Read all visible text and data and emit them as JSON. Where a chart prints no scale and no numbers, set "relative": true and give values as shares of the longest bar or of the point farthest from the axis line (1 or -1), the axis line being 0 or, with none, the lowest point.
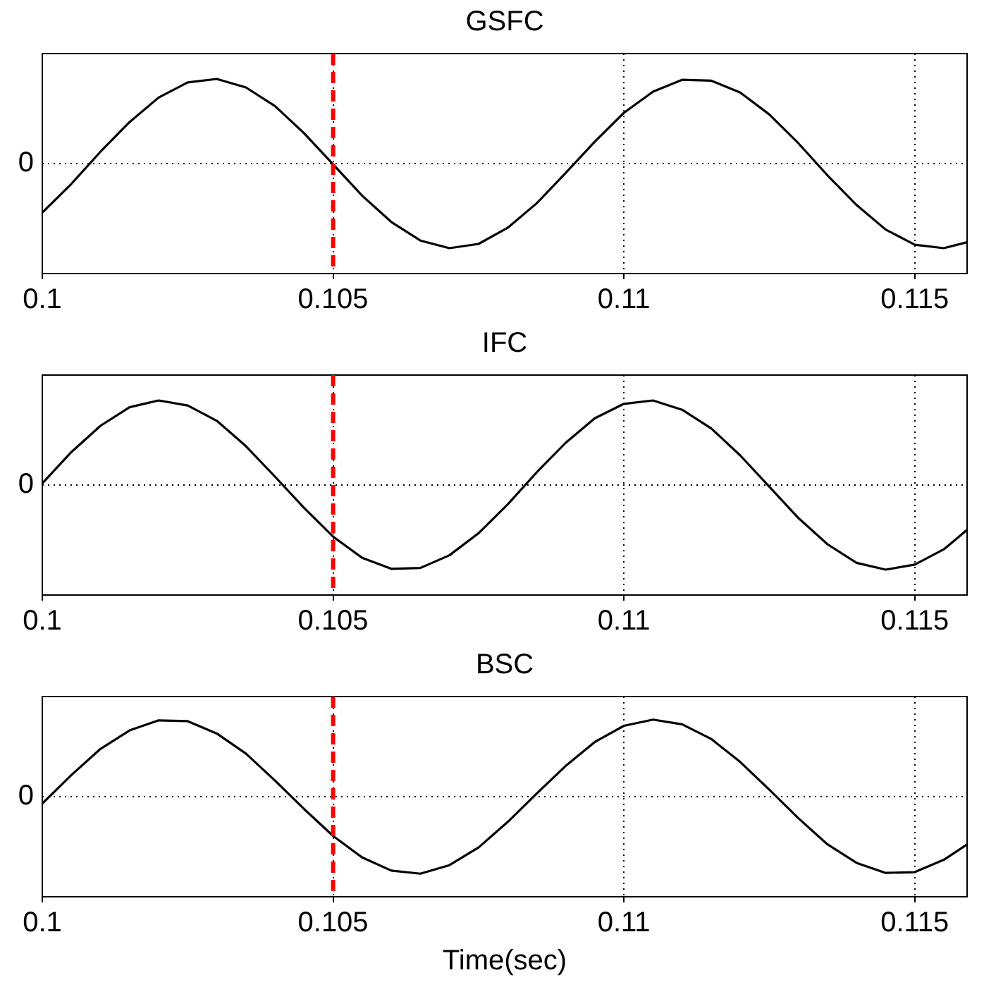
{
  "chart_data": [
    {
      "type": "line",
      "title": "GSFC",
      "relative": true,
      "x": [
        0.1,
        0.1005,
        0.101,
        0.1015,
        0.102,
        0.1025,
        0.103,
        0.1035,
        0.104,
        0.1045,
        0.105,
        0.1055,
        0.106,
        0.1065,
        0.107,
        0.1075,
        0.108,
        0.1085,
        0.109,
        0.1095,
        0.11,
        0.1105,
        0.111,
        0.1115,
        0.112,
        0.1125,
        0.113,
        0.1135,
        0.114,
        0.1145,
        0.115,
        0.1155,
        0.1159
      ],
      "series": [
        {
          "color": "#000000",
          "values": [
            -0.58,
            -0.24,
            0.14,
            0.49,
            0.78,
            0.96,
            1.0,
            0.9,
            0.68,
            0.36,
            -0.01,
            -0.38,
            -0.69,
            -0.91,
            -1.0,
            -0.95,
            -0.76,
            -0.47,
            -0.11,
            0.26,
            0.6,
            0.85,
            0.99,
            0.98,
            0.84,
            0.58,
            0.24,
            -0.14,
            -0.49,
            -0.78,
            -0.96,
            -1.0,
            -0.93
          ]
        }
      ],
      "xlim": [
        0.1,
        0.1159
      ],
      "xticks": [
        0.1,
        0.105,
        0.11,
        0.115
      ],
      "grid": "x",
      "marker": "none",
      "line_style": "solid",
      "legend": false,
      "ref_lines": [
        {
          "axis": "y",
          "value": 0,
          "label": "0",
          "line_style": "dotted",
          "color": "#000000"
        },
        {
          "axis": "x",
          "value": 0.105,
          "label": null,
          "line_style": "dashed",
          "color": "#ff0000"
        }
      ]
    },
    {
      "type": "line",
      "title": "IFC",
      "relative": true,
      "x": [
        0.1,
        0.1005,
        0.101,
        0.1015,
        0.102,
        0.1025,
        0.103,
        0.1035,
        0.104,
        0.1045,
        0.105,
        0.1055,
        0.106,
        0.1065,
        0.107,
        0.1075,
        0.108,
        0.1085,
        0.109,
        0.1095,
        0.11,
        0.1105,
        0.111,
        0.1115,
        0.112,
        0.1125,
        0.113,
        0.1135,
        0.114,
        0.1145,
        0.115,
        0.1155,
        0.1159
      ],
      "series": [
        {
          "color": "#000000",
          "values": [
            0.02,
            0.39,
            0.7,
            0.92,
            1.0,
            0.94,
            0.76,
            0.46,
            0.1,
            -0.27,
            -0.61,
            -0.86,
            -0.99,
            -0.98,
            -0.83,
            -0.57,
            -0.23,
            0.15,
            0.5,
            0.79,
            0.96,
            1.0,
            0.89,
            0.67,
            0.35,
            -0.02,
            -0.39,
            -0.7,
            -0.92,
            -1.0,
            -0.94,
            -0.76,
            -0.53
          ]
        }
      ],
      "xlim": [
        0.1,
        0.1159
      ],
      "xticks": [
        0.1,
        0.105,
        0.11,
        0.115
      ],
      "grid": "x",
      "marker": "none",
      "line_style": "solid",
      "legend": false,
      "ref_lines": [
        {
          "axis": "y",
          "value": 0,
          "label": "0",
          "line_style": "dotted",
          "color": "#000000"
        },
        {
          "axis": "x",
          "value": 0.105,
          "label": null,
          "line_style": "dashed",
          "color": "#ff0000"
        }
      ]
    },
    {
      "type": "line",
      "title": "BSC",
      "xlabel": "Time(sec)",
      "relative": true,
      "x": [
        0.1,
        0.1005,
        0.101,
        0.1015,
        0.102,
        0.1025,
        0.103,
        0.1035,
        0.104,
        0.1045,
        0.105,
        0.1055,
        0.106,
        0.1065,
        0.107,
        0.1075,
        0.108,
        0.1085,
        0.109,
        0.1095,
        0.11,
        0.1105,
        0.111,
        0.1115,
        0.112,
        0.1125,
        0.113,
        0.1135,
        0.114,
        0.1145,
        0.115,
        0.1155,
        0.1159
      ],
      "series": [
        {
          "color": "#000000",
          "values": [
            -0.09,
            0.28,
            0.62,
            0.86,
            0.99,
            0.98,
            0.82,
            0.56,
            0.21,
            -0.16,
            -0.51,
            -0.79,
            -0.96,
            -1.0,
            -0.89,
            -0.66,
            -0.33,
            0.04,
            0.4,
            0.71,
            0.92,
            1.0,
            0.94,
            0.75,
            0.45,
            0.09,
            -0.28,
            -0.62,
            -0.86,
            -0.99,
            -0.98,
            -0.82,
            -0.62
          ]
        }
      ],
      "xlim": [
        0.1,
        0.1159
      ],
      "xticks": [
        0.1,
        0.105,
        0.11,
        0.115
      ],
      "grid": "x",
      "marker": "none",
      "line_style": "solid",
      "legend": false,
      "ref_lines": [
        {
          "axis": "y",
          "value": 0,
          "label": "0",
          "line_style": "dotted",
          "color": "#000000"
        },
        {
          "axis": "x",
          "value": 0.105,
          "label": null,
          "line_style": "dashed",
          "color": "#ff0000"
        }
      ]
    }
  ]
}
